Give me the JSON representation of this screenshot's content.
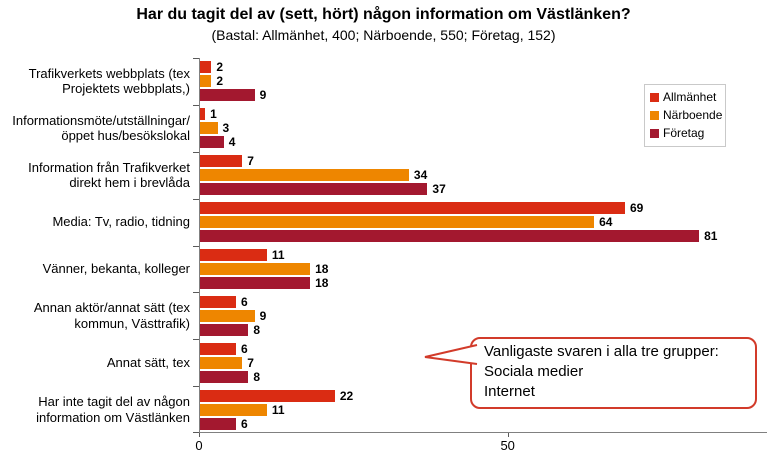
{
  "title": "Har du tagit del av (sett, hört) någon information om Västlänken?",
  "subtitle": "(Bastal: Allmänhet, 400; Närboende, 550; Företag, 152)",
  "chart_data": {
    "type": "bar",
    "orientation": "horizontal",
    "title": "Har du tagit del av (sett, hört) någon information om Västlänken?",
    "subtitle": "(Bastal: Allmänhet, 400; Närboende, 550; Företag, 152)",
    "categories": [
      "Trafikverkets webbplats (tex\nProjektets webbplats,)",
      "Informationsmöte/utställningar/\nöppet hus/besökslokal",
      "Information från Trafikverket\ndirekt hem i brevlåda",
      "Media: Tv, radio, tidning",
      "Vänner, bekanta, kolleger",
      "Annan aktör/annat sätt (tex\nkommun, Västtrafik)",
      "Annat sätt, tex",
      "Har inte tagit del av någon\ninformation om Västlänken"
    ],
    "series": [
      {
        "name": "Allmänhet",
        "color": "#da2c13",
        "values": [
          2,
          1,
          7,
          69,
          11,
          6,
          6,
          22
        ]
      },
      {
        "name": "Närboende",
        "color": "#ee8600",
        "values": [
          2,
          3,
          34,
          64,
          18,
          9,
          7,
          11
        ]
      },
      {
        "name": "Företag",
        "color": "#a3182f",
        "values": [
          9,
          4,
          37,
          81,
          18,
          8,
          8,
          6
        ]
      }
    ],
    "x_ticks": [
      0,
      50
    ],
    "xlim": [
      0,
      92
    ],
    "grid": false,
    "value_labels": true,
    "legend_position": "upper-right"
  },
  "x_axis": {
    "tick_labels": [
      "0",
      "50"
    ]
  },
  "callout": {
    "lines": [
      "Vanligaste svaren i alla tre grupper:",
      "Sociala medier",
      "Internet"
    ],
    "border_color": "#d23b2a"
  }
}
